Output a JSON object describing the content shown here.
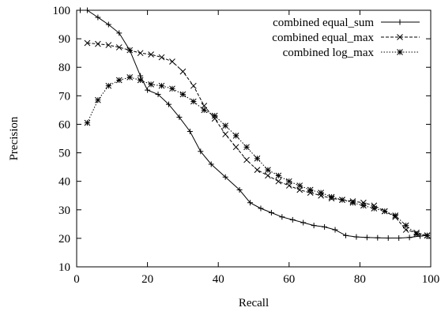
{
  "chart_data": {
    "type": "line",
    "title": "",
    "xlabel": "Recall",
    "ylabel": "Precision",
    "xlim": [
      0,
      100
    ],
    "ylim": [
      10,
      100
    ],
    "xticks": [
      0,
      20,
      40,
      60,
      80,
      100
    ],
    "yticks": [
      10,
      20,
      30,
      40,
      50,
      60,
      70,
      80,
      90,
      100
    ],
    "grid": false,
    "legend_position": "top-right",
    "series": [
      {
        "name": "combined equal_sum",
        "line_style": "solid",
        "marker": "plus",
        "x": [
          1,
          3,
          6,
          9,
          12,
          15,
          18,
          20,
          23,
          26,
          29,
          32,
          35,
          38,
          42,
          46,
          49,
          52,
          55,
          58,
          61,
          64,
          67,
          70,
          73,
          76,
          79,
          82,
          85,
          88,
          91,
          94,
          97,
          99
        ],
        "y": [
          100,
          100,
          97.5,
          95,
          92,
          86,
          77,
          72,
          70.5,
          67,
          62.5,
          57.5,
          50.5,
          46,
          41.5,
          37,
          32.5,
          30.5,
          29,
          27.5,
          26.5,
          25.5,
          24.5,
          24,
          23,
          21,
          20.5,
          20.3,
          20.2,
          20.1,
          20.1,
          20.3,
          20.8,
          21
        ]
      },
      {
        "name": "combined equal_max",
        "line_style": "dashed",
        "marker": "x",
        "x": [
          3,
          6,
          9,
          12,
          15,
          18,
          21,
          24,
          27,
          30,
          33,
          36,
          39,
          42,
          45,
          48,
          51,
          54,
          57,
          60,
          63,
          66,
          69,
          72,
          75,
          78,
          81,
          84,
          87,
          90,
          93,
          96,
          99
        ],
        "y": [
          88.5,
          88.2,
          87.8,
          87,
          86,
          85,
          84.5,
          83.5,
          82,
          78.5,
          73.5,
          66.5,
          62,
          56.5,
          52,
          47.5,
          44,
          42,
          40,
          38.5,
          37,
          36,
          35,
          34,
          33.5,
          33,
          32.5,
          31.5,
          29.5,
          27.5,
          23,
          22,
          21
        ]
      },
      {
        "name": "combined log_max",
        "line_style": "dotted",
        "marker": "asterisk",
        "x": [
          3,
          6,
          9,
          12,
          15,
          18,
          21,
          24,
          27,
          30,
          33,
          36,
          39,
          42,
          45,
          48,
          51,
          54,
          57,
          60,
          63,
          66,
          69,
          72,
          75,
          78,
          81,
          84,
          87,
          90,
          93,
          96,
          99
        ],
        "y": [
          60.5,
          68.5,
          73.5,
          75.5,
          76.5,
          75.5,
          74,
          73.5,
          72.5,
          70.5,
          68,
          65,
          63,
          59.5,
          56,
          52,
          48,
          44,
          42,
          40,
          38.5,
          37,
          36,
          34.5,
          33.5,
          32.5,
          31.5,
          30.5,
          29.5,
          28,
          24.5,
          21.5,
          21
        ]
      }
    ]
  }
}
